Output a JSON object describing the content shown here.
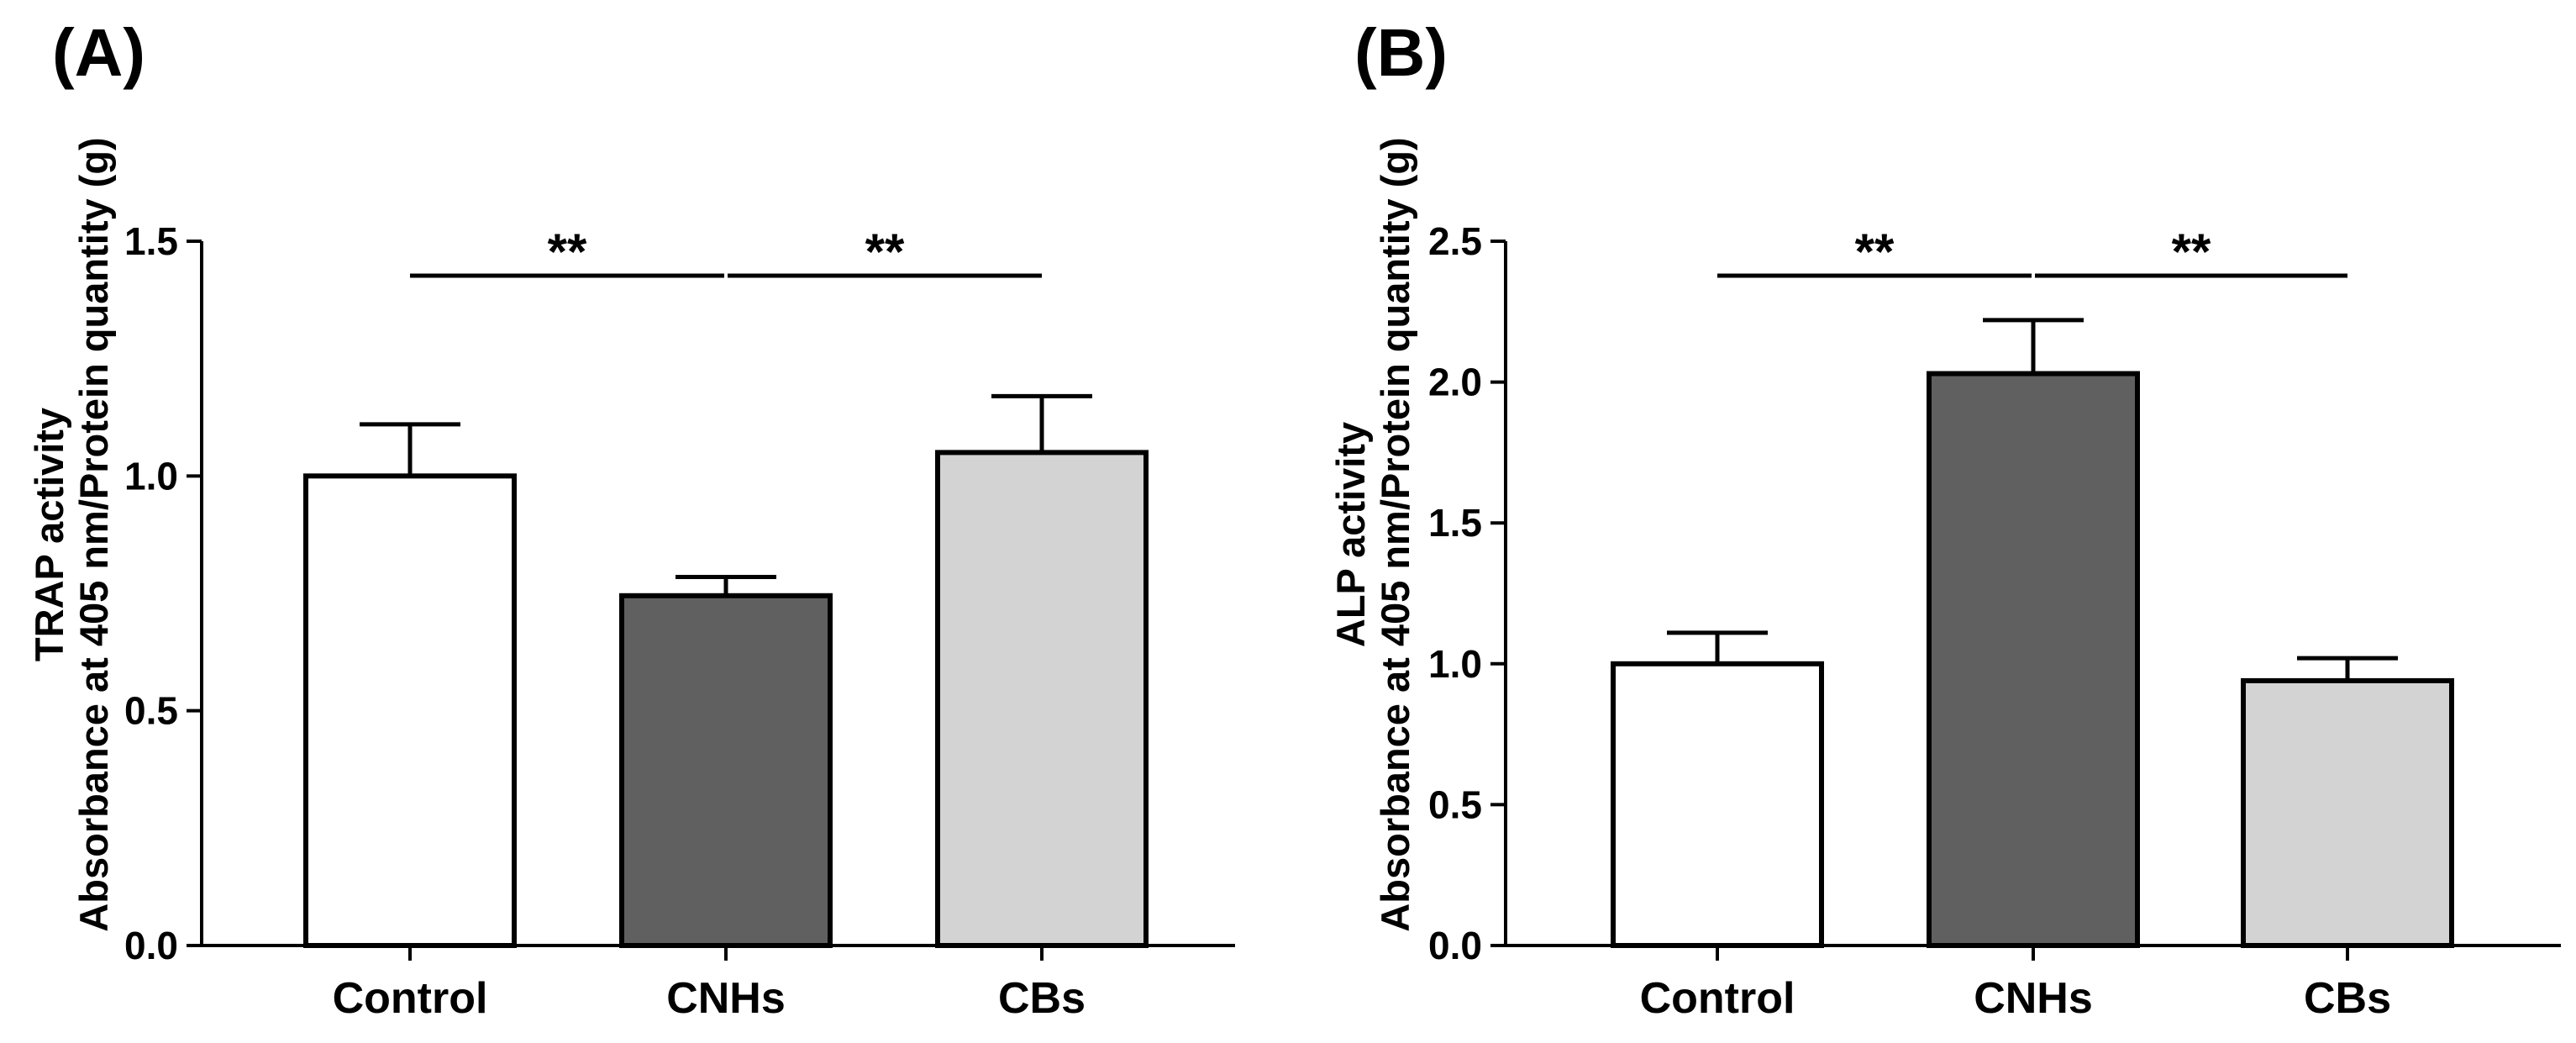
{
  "chart_data": [
    {
      "type": "bar",
      "panel_label": "(A)",
      "categories": [
        "Control",
        "CNHs",
        "CBs"
      ],
      "values": [
        1.0,
        0.745,
        1.05
      ],
      "errors": [
        0.11,
        0.04,
        0.12
      ],
      "colors": [
        "#ffffff",
        "#606060",
        "#d3d3d3"
      ],
      "ylabel_line1": "TRAP activity",
      "ylabel_line2": "Absorbance at 405 nm/Protein quantity (g)",
      "ylim": [
        0,
        1.5
      ],
      "yticks": [
        "0.0",
        "0.5",
        "1.0",
        "1.5"
      ],
      "yticks_values": [
        0,
        0.5,
        1.0,
        1.5
      ],
      "significance": [
        {
          "from": 0,
          "to": 1,
          "label": "**"
        },
        {
          "from": 1,
          "to": 2,
          "label": "**"
        }
      ]
    },
    {
      "type": "bar",
      "panel_label": "(B)",
      "categories": [
        "Control",
        "CNHs",
        "CBs"
      ],
      "values": [
        1.0,
        2.03,
        0.94
      ],
      "errors": [
        0.11,
        0.19,
        0.08
      ],
      "colors": [
        "#ffffff",
        "#606060",
        "#d3d3d3"
      ],
      "ylabel_line1": "ALP activity",
      "ylabel_line2": "Absorbance at 405 nm/Protein quantity (g)",
      "ylim": [
        0,
        2.5
      ],
      "yticks": [
        "0.0",
        "0.5",
        "1.0",
        "1.5",
        "2.0",
        "2.5"
      ],
      "yticks_values": [
        0,
        0.5,
        1.0,
        1.5,
        2.0,
        2.5
      ],
      "significance": [
        {
          "from": 0,
          "to": 1,
          "label": "**"
        },
        {
          "from": 1,
          "to": 2,
          "label": "**"
        }
      ]
    }
  ]
}
